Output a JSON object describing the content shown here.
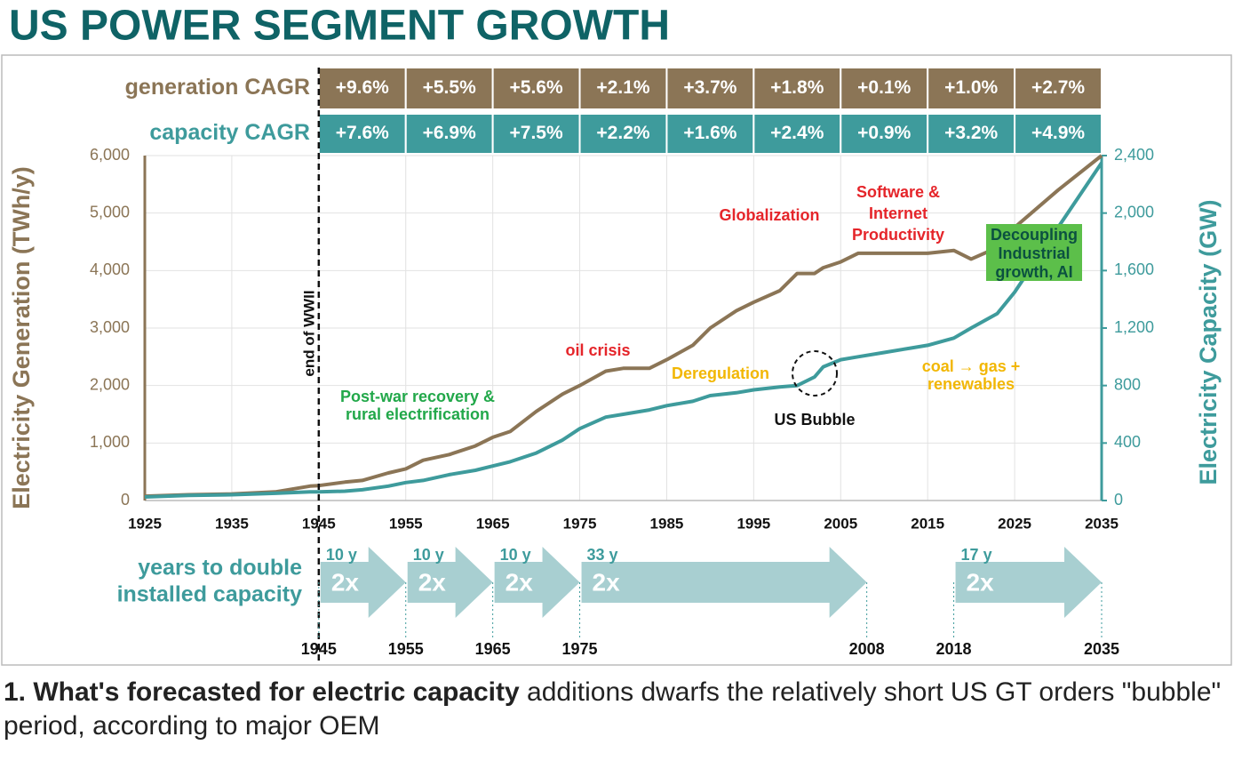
{
  "chart_data": {
    "type": "line",
    "title": "US POWER SEGMENT GROWTH",
    "y_label": "Electricity Generation (TWh/y)",
    "y2_label": "Electricity Capacity (GW)",
    "x": [
      1925,
      1930,
      1935,
      1940,
      1944,
      1945,
      1948,
      1950,
      1953,
      1955,
      1957,
      1960,
      1963,
      1965,
      1967,
      1970,
      1973,
      1975,
      1978,
      1980,
      1983,
      1985,
      1988,
      1990,
      1993,
      1995,
      1998,
      2000,
      2002,
      2003,
      2005,
      2007,
      2010,
      2013,
      2015,
      2018,
      2020,
      2023,
      2025,
      2030,
      2035
    ],
    "series": [
      {
        "name": "generation",
        "color": "#8b7556",
        "values": [
          75,
          100,
          115,
          150,
          250,
          260,
          320,
          350,
          480,
          550,
          700,
          800,
          950,
          1100,
          1200,
          1550,
          1850,
          2000,
          2250,
          2300,
          2300,
          2450,
          2700,
          3000,
          3300,
          3450,
          3650,
          3950,
          3950,
          4050,
          4150,
          4300,
          4300,
          4300,
          4300,
          4350,
          4200,
          4400,
          4750,
          5400,
          6000
        ]
      },
      {
        "name": "capacity",
        "color": "#3e9b9c",
        "axis": "y2",
        "values": [
          25,
          35,
          40,
          50,
          60,
          60,
          65,
          75,
          100,
          125,
          140,
          180,
          210,
          240,
          270,
          330,
          420,
          500,
          580,
          600,
          630,
          660,
          690,
          730,
          750,
          770,
          790,
          800,
          860,
          930,
          980,
          1000,
          1030,
          1060,
          1080,
          1130,
          1200,
          1300,
          1450,
          1900,
          2350
        ]
      }
    ],
    "xlim": [
      1925,
      2035
    ],
    "xticks": [
      1925,
      1935,
      1945,
      1955,
      1965,
      1975,
      1985,
      1995,
      2005,
      2015,
      2025,
      2035
    ],
    "ylim": [
      0,
      6000
    ],
    "yticks": [
      0,
      {
        "value": 1000,
        "label": "1,000"
      },
      {
        "value": 2000,
        "label": "2,000"
      },
      {
        "value": 3000,
        "label": "3,000"
      },
      {
        "value": 4000,
        "label": "4,000"
      },
      {
        "value": 5000,
        "label": "5,000"
      },
      {
        "value": 6000,
        "label": "6,000"
      }
    ],
    "y2lim": [
      0,
      2400
    ],
    "y2ticks": [
      0,
      400,
      800,
      {
        "value": 1200,
        "label": "1,200"
      },
      {
        "value": 1600,
        "label": "1,600"
      },
      {
        "value": 2000,
        "label": "2,000"
      },
      {
        "value": 2400,
        "label": "2,400"
      }
    ],
    "grid": true,
    "cagr_rows": [
      {
        "label": "generation CAGR",
        "color": "#8b7556",
        "cells": [
          "+9.6%",
          "+5.5%",
          "+5.6%",
          "+2.1%",
          "+3.7%",
          "+1.8%",
          "+0.1%",
          "+1.0%",
          "+2.7%"
        ]
      },
      {
        "label": "capacity CAGR",
        "color": "#3e9b9c",
        "cells": [
          "+7.6%",
          "+6.9%",
          "+7.5%",
          "+2.2%",
          "+1.6%",
          "+2.4%",
          "+0.9%",
          "+3.2%",
          "+4.9%"
        ]
      }
    ],
    "marker_line": {
      "x": 1945,
      "label": "end of WWII"
    },
    "annotations": [
      {
        "lines": [
          "Post-war recovery &",
          "rural electrification"
        ],
        "color": "#22a84a"
      },
      {
        "lines": [
          "oil crisis"
        ],
        "color": "#e5252a"
      },
      {
        "lines": [
          "Deregulation"
        ],
        "color": "#f2b705"
      },
      {
        "lines": [
          "US Bubble"
        ],
        "color": "#111111"
      },
      {
        "lines": [
          "Globalization"
        ],
        "color": "#e5252a"
      },
      {
        "lines": [
          "Software &",
          "Internet",
          "Productivity"
        ],
        "color": "#e5252a"
      },
      {
        "lines": [
          "Decoupling",
          "Industrial",
          "growth, AI"
        ],
        "color": "#0b5140"
      },
      {
        "lines": [
          "coal → gas +",
          "renewables"
        ],
        "color": "#f2b705"
      }
    ],
    "doubling": {
      "label": [
        "years to double",
        "installed capacity"
      ],
      "years": [
        1945,
        1955,
        1965,
        1975,
        2008,
        2018,
        2035
      ],
      "arrows": [
        {
          "duration": "10 y",
          "factor": "2x"
        },
        {
          "duration": "10 y",
          "factor": "2x"
        },
        {
          "duration": "10 y",
          "factor": "2x"
        },
        {
          "duration": "33 y",
          "factor": "2x"
        },
        null,
        {
          "duration": "17 y",
          "factor": "2x"
        }
      ]
    }
  },
  "caption": {
    "bold": "1. What's forecasted for electric capacity",
    "text": " additions dwarfs the relatively short US GT orders \"bubble\" period, according to major OEM"
  }
}
